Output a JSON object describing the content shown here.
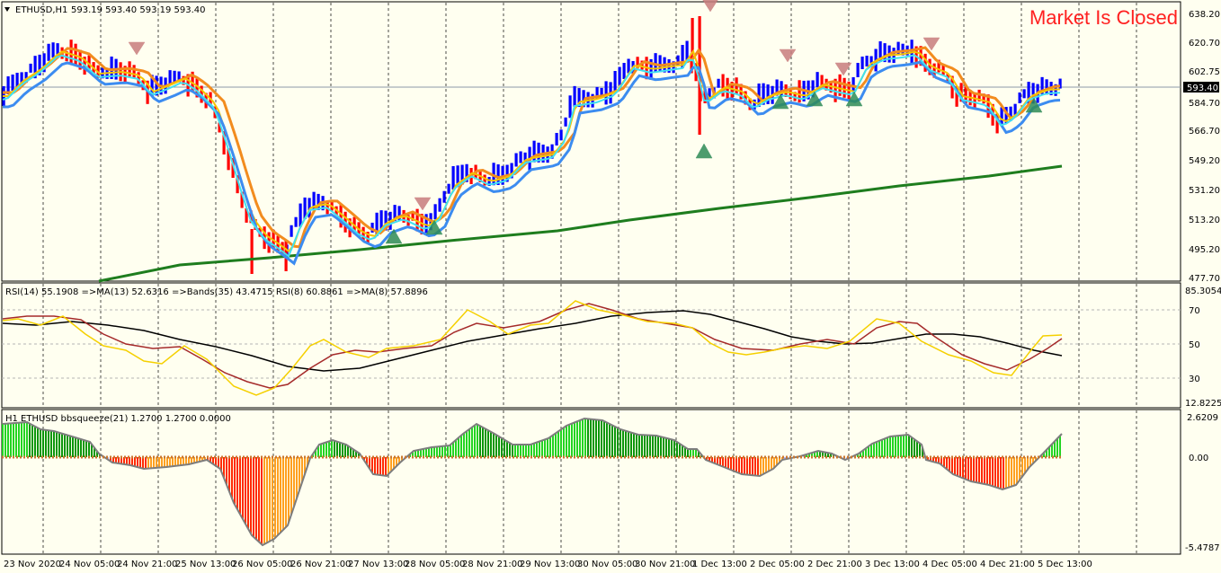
{
  "header": {
    "symbol_label": "ETHUSD,H1",
    "ohlc_label": "593.19 593.40 593.19 593.40",
    "market_status": "Market Is Closed"
  },
  "price_panel": {
    "y_labels": [
      "638.20",
      "620.70",
      "602.75",
      "584.70",
      "566.70",
      "549.20",
      "531.20",
      "513.20",
      "495.20",
      "477.70"
    ],
    "y_range": [
      477.7,
      638.2
    ],
    "current_price": "593.40",
    "up_color": "#0000ff",
    "down_color": "#ff0000"
  },
  "rsi_panel": {
    "label": "RSI(14) 55.1908  =>MA(13) 52.6316  =>Bands(35) 43.4715  RSI(8) 60.8861  =>MA(8) 57.8896",
    "y_labels": [
      "85.3054",
      "70",
      "50",
      "30",
      "12.8225"
    ],
    "y_range": [
      12.8225,
      85.3054
    ]
  },
  "squeeze_panel": {
    "label": "H1 ETHUSD bbsqueeze(21) 1.2700 1.2700 0.0000",
    "y_labels": [
      "2.6209",
      "0.00",
      "-5.4787"
    ],
    "y_range": [
      -5.4787,
      2.6209
    ]
  },
  "x_axis": {
    "labels": [
      "23 Nov 2020",
      "24 Nov 05:00",
      "24 Nov 21:00",
      "25 Nov 13:00",
      "26 Nov 05:00",
      "26 Nov 21:00",
      "27 Nov 13:00",
      "28 Nov 05:00",
      "28 Nov 21:00",
      "29 Nov 13:00",
      "30 Nov 05:00",
      "30 Nov 21:00",
      "1 Dec 13:00",
      "2 Dec 05:00",
      "2 Dec 21:00",
      "3 Dec 13:00",
      "4 Dec 05:00",
      "4 Dec 21:00",
      "5 Dec 13:00"
    ]
  }
}
